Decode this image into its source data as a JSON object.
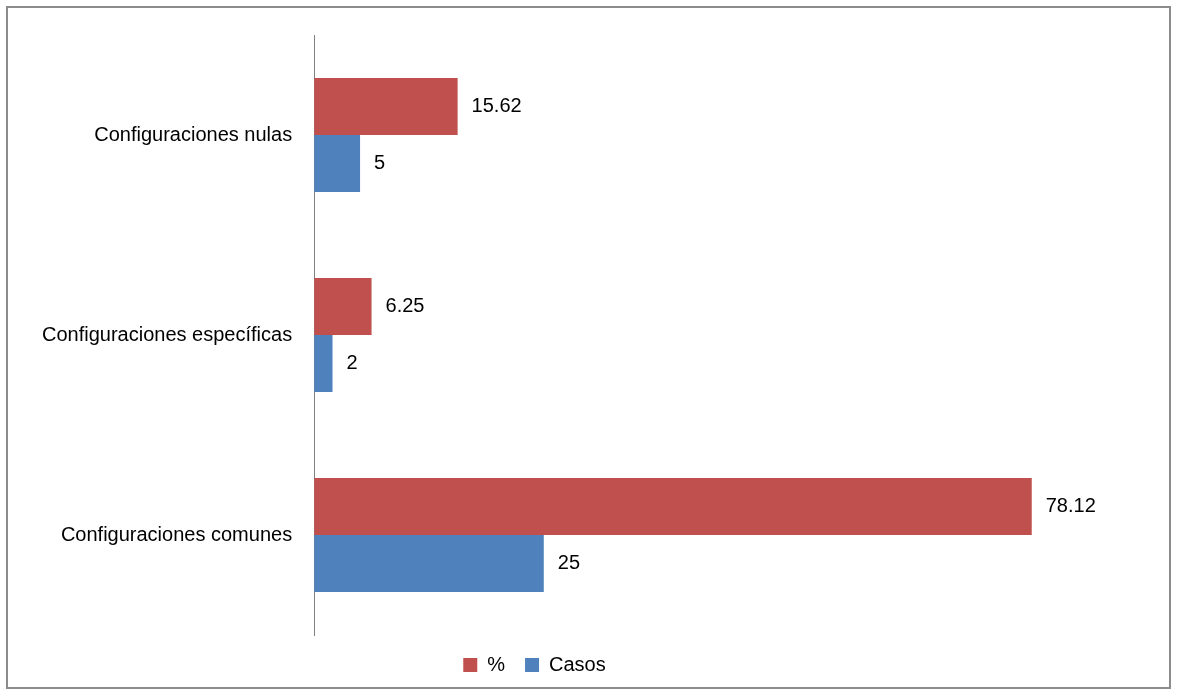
{
  "chart_data": {
    "type": "bar",
    "orientation": "horizontal",
    "categories": [
      "Configuraciones nulas",
      "Configuraciones específicas",
      "Configuraciones comunes"
    ],
    "series": [
      {
        "name": "%",
        "color": "#c0504d",
        "values": [
          15.62,
          6.25,
          78.12
        ]
      },
      {
        "name": "Casos",
        "color": "#4f81bd",
        "values": [
          5,
          2,
          25
        ]
      }
    ],
    "data_labels": true,
    "legend": "bottom"
  }
}
